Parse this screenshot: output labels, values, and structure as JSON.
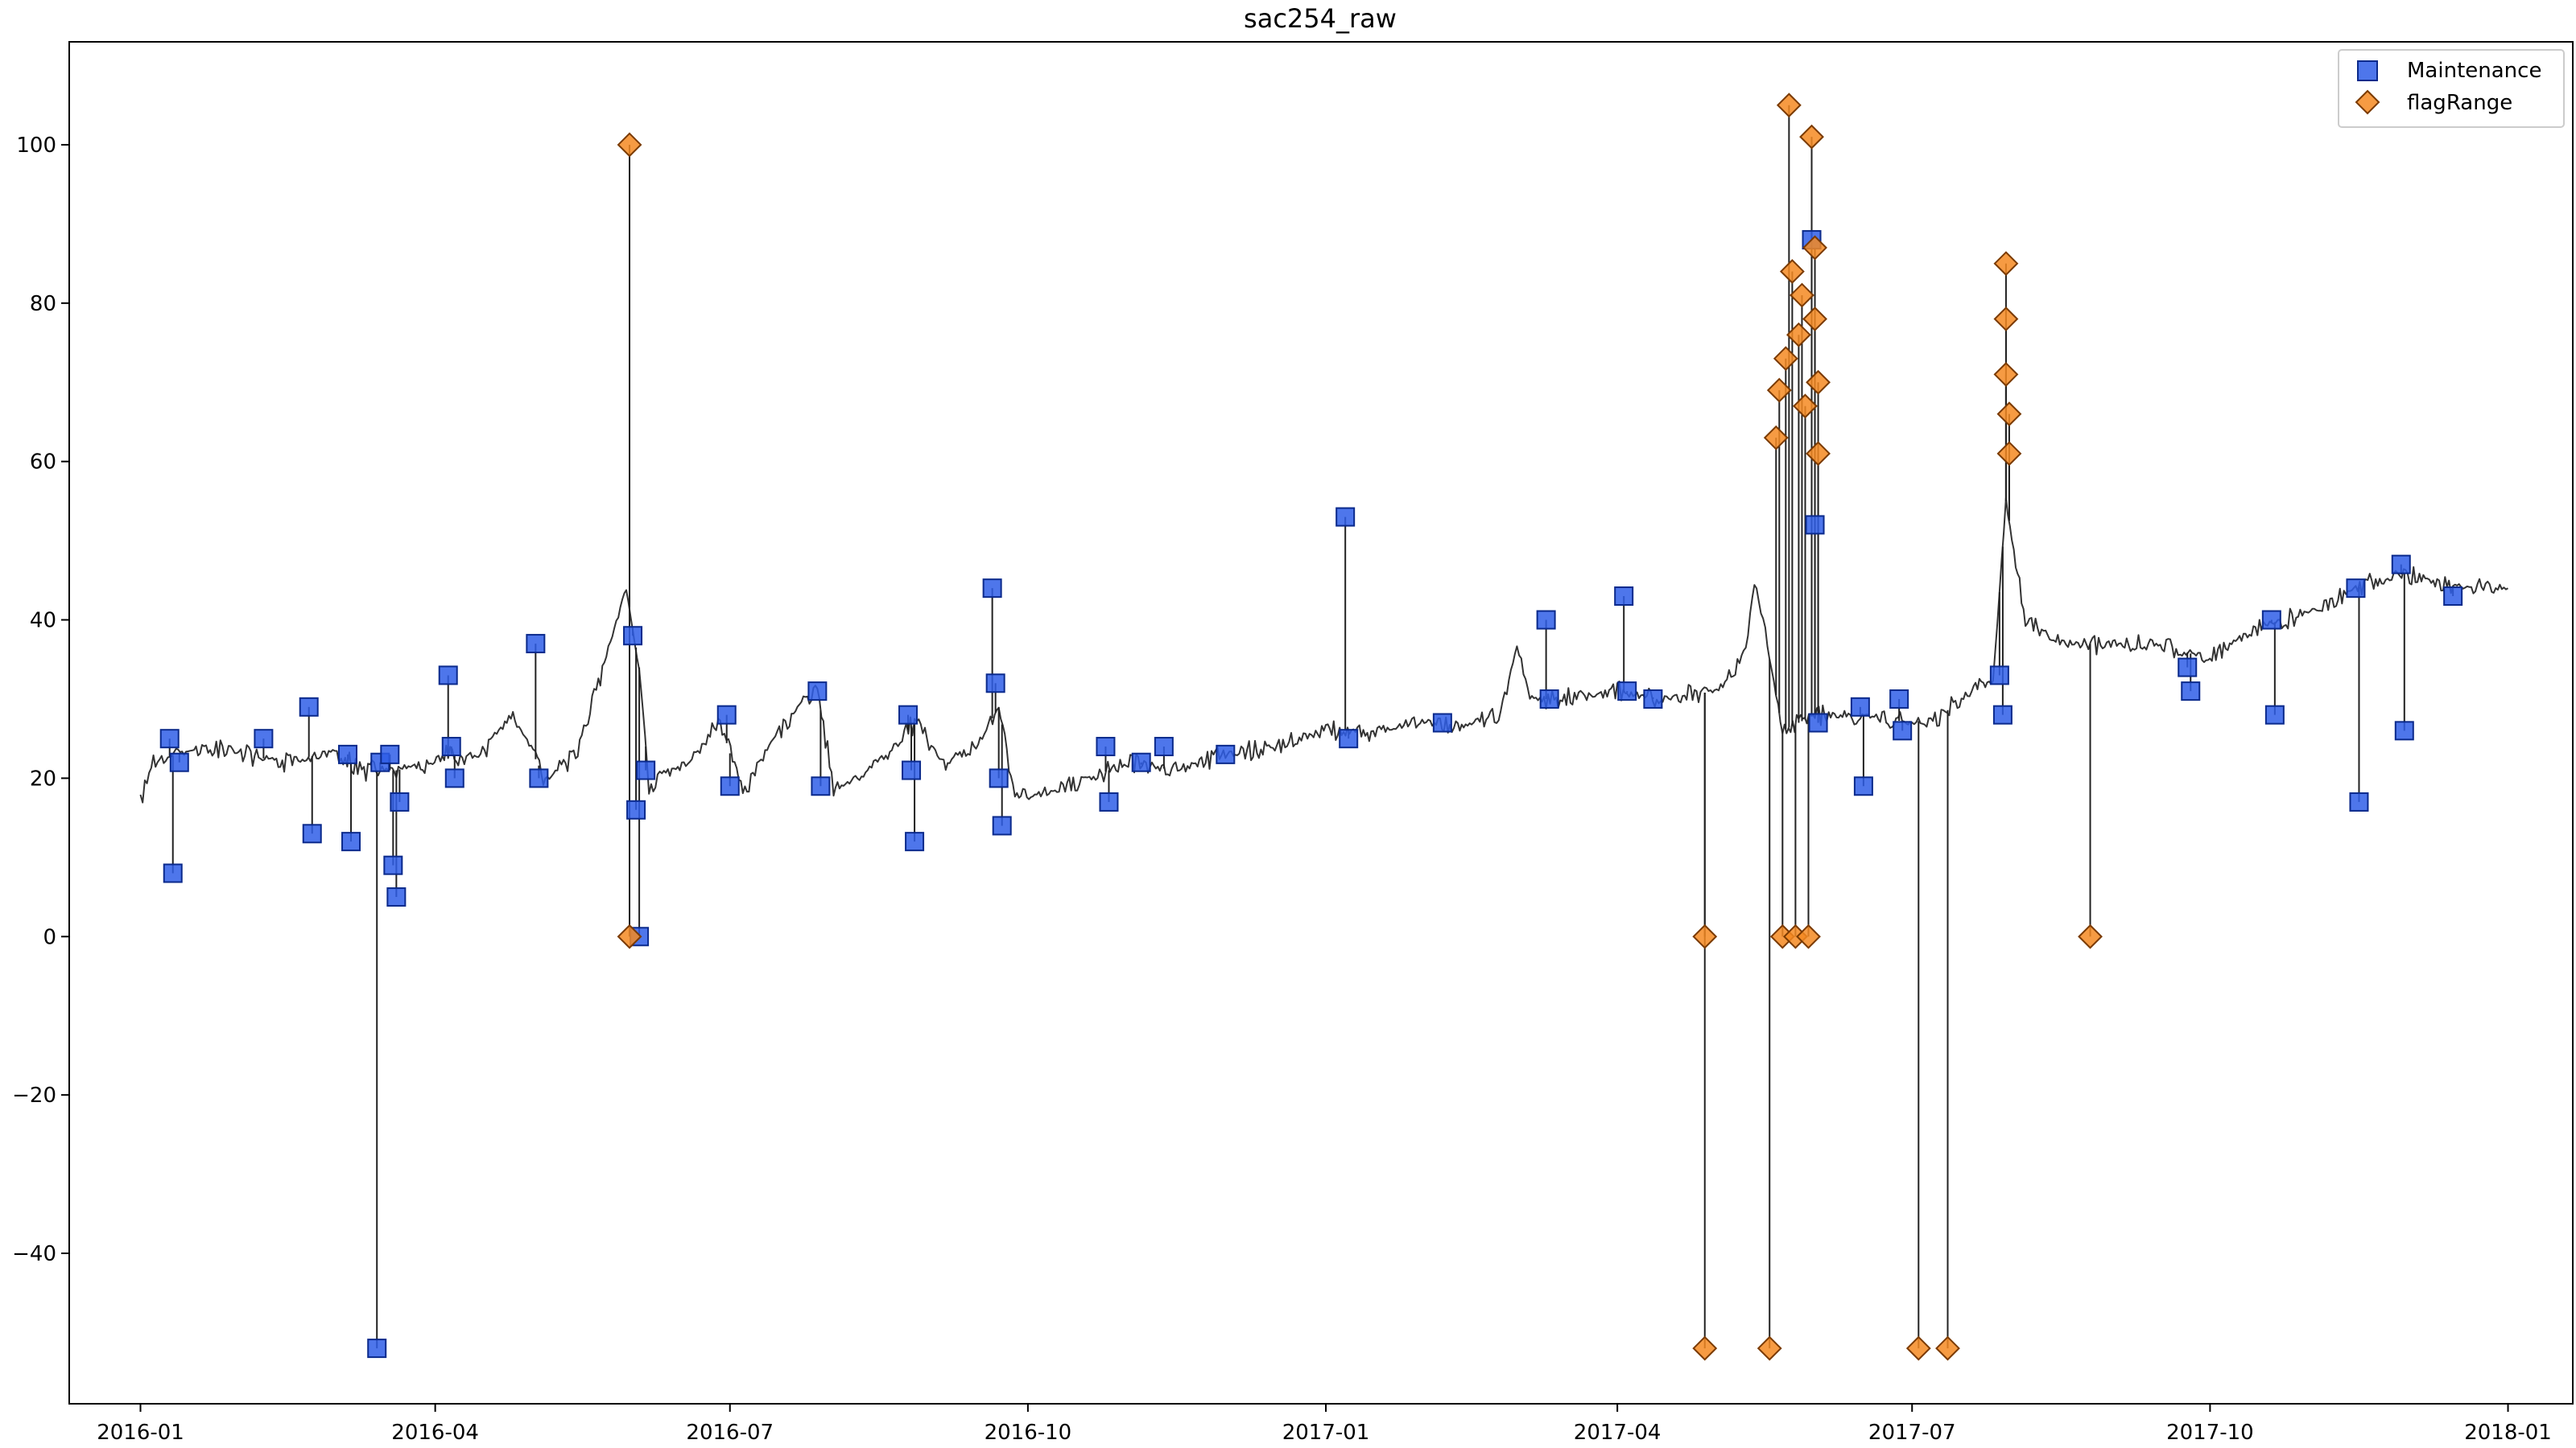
{
  "chart_data": {
    "type": "line",
    "title": "sac254_raw",
    "xlabel": "",
    "ylabel": "",
    "xlim": [
      "2015-12-10",
      "2018-01-21"
    ],
    "ylim": [
      -59,
      113
    ],
    "xticks": [
      "2016-01",
      "2016-04",
      "2016-07",
      "2016-10",
      "2017-01",
      "2017-04",
      "2017-07",
      "2017-10",
      "2018-01"
    ],
    "yticks": [
      -40,
      -20,
      0,
      20,
      40,
      60,
      80,
      100
    ],
    "legend": {
      "placement": "top-right",
      "entries": [
        "Maintenance",
        "flagRange"
      ]
    },
    "grid": false,
    "colors": {
      "line": "#333333",
      "maintenance_fill": "#2f5ee8",
      "maintenance_edge": "#0b2a8c",
      "flag_fill": "#f58a22",
      "flag_edge": "#7a3a00"
    },
    "series": [
      {
        "name": "",
        "style": "line",
        "points": [
          [
            "2016-01-01",
            17
          ],
          [
            "2016-01-05",
            22
          ],
          [
            "2016-01-12",
            23
          ],
          [
            "2016-01-20",
            24
          ],
          [
            "2016-02-01",
            23
          ],
          [
            "2016-02-15",
            22
          ],
          [
            "2016-02-25",
            23
          ],
          [
            "2016-03-01",
            23
          ],
          [
            "2016-03-10",
            21
          ],
          [
            "2016-03-20",
            21
          ],
          [
            "2016-03-30",
            22
          ],
          [
            "2016-04-05",
            23
          ],
          [
            "2016-04-15",
            23
          ],
          [
            "2016-04-25",
            28
          ],
          [
            "2016-05-05",
            20
          ],
          [
            "2016-05-15",
            23
          ],
          [
            "2016-05-22",
            33
          ],
          [
            "2016-05-30",
            44
          ],
          [
            "2016-06-03",
            34
          ],
          [
            "2016-06-06",
            19
          ],
          [
            "2016-06-10",
            20
          ],
          [
            "2016-06-18",
            22
          ],
          [
            "2016-06-28",
            27
          ],
          [
            "2016-07-05",
            18
          ],
          [
            "2016-07-10",
            22
          ],
          [
            "2016-07-20",
            28
          ],
          [
            "2016-07-28",
            31
          ],
          [
            "2016-08-02",
            19
          ],
          [
            "2016-08-10",
            20
          ],
          [
            "2016-08-20",
            24
          ],
          [
            "2016-08-27",
            27
          ],
          [
            "2016-09-05",
            22
          ],
          [
            "2016-09-15",
            24
          ],
          [
            "2016-09-22",
            29
          ],
          [
            "2016-09-27",
            18
          ],
          [
            "2016-10-05",
            18
          ],
          [
            "2016-10-20",
            20
          ],
          [
            "2016-11-01",
            22
          ],
          [
            "2016-11-15",
            21
          ],
          [
            "2016-12-01",
            23
          ],
          [
            "2016-12-15",
            24
          ],
          [
            "2017-01-01",
            26
          ],
          [
            "2017-01-15",
            26
          ],
          [
            "2017-02-01",
            27
          ],
          [
            "2017-02-15",
            27
          ],
          [
            "2017-02-24",
            28
          ],
          [
            "2017-03-01",
            37
          ],
          [
            "2017-03-05",
            30
          ],
          [
            "2017-03-15",
            30
          ],
          [
            "2017-04-01",
            31
          ],
          [
            "2017-04-15",
            30
          ],
          [
            "2017-05-01",
            31
          ],
          [
            "2017-05-10",
            35
          ],
          [
            "2017-05-14",
            45
          ],
          [
            "2017-05-18",
            35
          ],
          [
            "2017-05-22",
            26
          ],
          [
            "2017-06-01",
            28
          ],
          [
            "2017-06-15",
            28
          ],
          [
            "2017-07-01",
            27
          ],
          [
            "2017-07-10",
            28
          ],
          [
            "2017-07-20",
            31
          ],
          [
            "2017-07-26",
            32
          ],
          [
            "2017-07-30",
            55
          ],
          [
            "2017-08-05",
            40
          ],
          [
            "2017-08-15",
            37
          ],
          [
            "2017-09-01",
            37
          ],
          [
            "2017-09-15",
            37
          ],
          [
            "2017-10-01",
            35
          ],
          [
            "2017-10-15",
            39
          ],
          [
            "2017-11-01",
            41
          ],
          [
            "2017-11-15",
            44
          ],
          [
            "2017-12-01",
            46
          ],
          [
            "2017-12-15",
            44
          ],
          [
            "2018-01-01",
            44
          ]
        ]
      },
      {
        "name": "Maintenance",
        "style": "marker-square",
        "points": [
          [
            "2016-01-10",
            25
          ],
          [
            "2016-01-11",
            8
          ],
          [
            "2016-01-13",
            22
          ],
          [
            "2016-02-08",
            25
          ],
          [
            "2016-02-22",
            29
          ],
          [
            "2016-02-23",
            13
          ],
          [
            "2016-03-05",
            23
          ],
          [
            "2016-03-06",
            12
          ],
          [
            "2016-03-14",
            -52
          ],
          [
            "2016-03-15",
            22
          ],
          [
            "2016-03-18",
            23
          ],
          [
            "2016-03-19",
            9
          ],
          [
            "2016-03-20",
            5
          ],
          [
            "2016-03-21",
            17
          ],
          [
            "2016-04-05",
            33
          ],
          [
            "2016-04-06",
            24
          ],
          [
            "2016-04-07",
            20
          ],
          [
            "2016-05-02",
            37
          ],
          [
            "2016-05-03",
            20
          ],
          [
            "2016-06-01",
            38
          ],
          [
            "2016-06-02",
            16
          ],
          [
            "2016-06-03",
            0
          ],
          [
            "2016-06-05",
            21
          ],
          [
            "2016-06-30",
            28
          ],
          [
            "2016-07-01",
            19
          ],
          [
            "2016-07-28",
            31
          ],
          [
            "2016-07-29",
            19
          ],
          [
            "2016-08-25",
            28
          ],
          [
            "2016-08-26",
            21
          ],
          [
            "2016-08-27",
            12
          ],
          [
            "2016-09-20",
            44
          ],
          [
            "2016-09-21",
            32
          ],
          [
            "2016-09-22",
            20
          ],
          [
            "2016-09-23",
            14
          ],
          [
            "2016-10-25",
            24
          ],
          [
            "2016-10-26",
            17
          ],
          [
            "2016-11-05",
            22
          ],
          [
            "2016-11-12",
            24
          ],
          [
            "2016-12-01",
            23
          ],
          [
            "2017-01-07",
            53
          ],
          [
            "2017-01-08",
            25
          ],
          [
            "2017-02-06",
            27
          ],
          [
            "2017-03-10",
            40
          ],
          [
            "2017-03-11",
            30
          ],
          [
            "2017-04-03",
            43
          ],
          [
            "2017-04-04",
            31
          ],
          [
            "2017-04-12",
            30
          ],
          [
            "2017-05-31",
            88
          ],
          [
            "2017-06-01",
            52
          ],
          [
            "2017-06-02",
            27
          ],
          [
            "2017-06-15",
            29
          ],
          [
            "2017-06-16",
            19
          ],
          [
            "2017-06-27",
            30
          ],
          [
            "2017-06-28",
            26
          ],
          [
            "2017-07-28",
            33
          ],
          [
            "2017-07-29",
            28
          ],
          [
            "2017-09-24",
            34
          ],
          [
            "2017-09-25",
            31
          ],
          [
            "2017-10-20",
            40
          ],
          [
            "2017-10-21",
            28
          ],
          [
            "2017-11-15",
            44
          ],
          [
            "2017-11-16",
            17
          ],
          [
            "2017-11-29",
            47
          ],
          [
            "2017-11-30",
            26
          ],
          [
            "2017-12-15",
            43
          ]
        ]
      },
      {
        "name": "flagRange",
        "style": "marker-diamond",
        "points": [
          [
            "2016-05-31",
            100
          ],
          [
            "2016-05-31",
            0
          ],
          [
            "2017-04-28",
            0
          ],
          [
            "2017-04-28",
            -52
          ],
          [
            "2017-05-18",
            -52
          ],
          [
            "2017-05-20",
            63
          ],
          [
            "2017-05-21",
            69
          ],
          [
            "2017-05-22",
            0
          ],
          [
            "2017-05-23",
            73
          ],
          [
            "2017-05-24",
            105
          ],
          [
            "2017-05-25",
            84
          ],
          [
            "2017-05-26",
            0
          ],
          [
            "2017-05-27",
            76
          ],
          [
            "2017-05-28",
            81
          ],
          [
            "2017-05-29",
            67
          ],
          [
            "2017-05-30",
            0
          ],
          [
            "2017-05-31",
            101
          ],
          [
            "2017-06-01",
            87
          ],
          [
            "2017-06-01",
            78
          ],
          [
            "2017-06-02",
            70
          ],
          [
            "2017-06-02",
            61
          ],
          [
            "2017-07-03",
            -52
          ],
          [
            "2017-07-12",
            -52
          ],
          [
            "2017-07-30",
            85
          ],
          [
            "2017-07-30",
            78
          ],
          [
            "2017-07-30",
            71
          ],
          [
            "2017-07-31",
            66
          ],
          [
            "2017-07-31",
            61
          ],
          [
            "2017-08-25",
            0
          ]
        ]
      }
    ]
  }
}
